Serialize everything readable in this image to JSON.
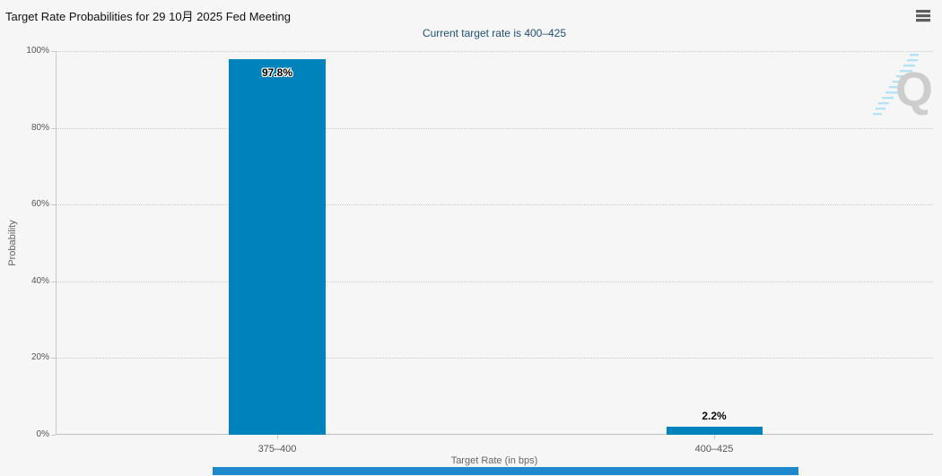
{
  "header": {
    "title": "Target Rate Probabilities for 29 10月 2025 Fed Meeting",
    "subtitle": "Current target rate is 400–425"
  },
  "watermark": {
    "letter": "Q"
  },
  "colors": {
    "bar_fill": "#0082bc",
    "subtitle_text": "#1f4e79",
    "scrollbar_thumb": "#1d88cc",
    "watermark_letter": "#c9c9c9",
    "watermark_dashes": "#ade0f4",
    "background": "#f6f6f6"
  },
  "chart_data": {
    "type": "bar",
    "title": "Target Rate Probabilities for 29 10月 2025 Fed Meeting",
    "subtitle": "Current target rate is 400–425",
    "categories": [
      "375–400",
      "400–425"
    ],
    "values": [
      97.8,
      2.2
    ],
    "value_labels": [
      "97.8%",
      "2.2%"
    ],
    "xlabel": "Target Rate (in bps)",
    "ylabel": "Probability",
    "ylim": [
      0,
      100
    ],
    "yticks": [
      "100%",
      "80%",
      "60%",
      "40%",
      "20%",
      "0%"
    ],
    "grid": "horizontal dotted lines every 20%",
    "legend": "none",
    "bar_color": "#0082bc"
  }
}
